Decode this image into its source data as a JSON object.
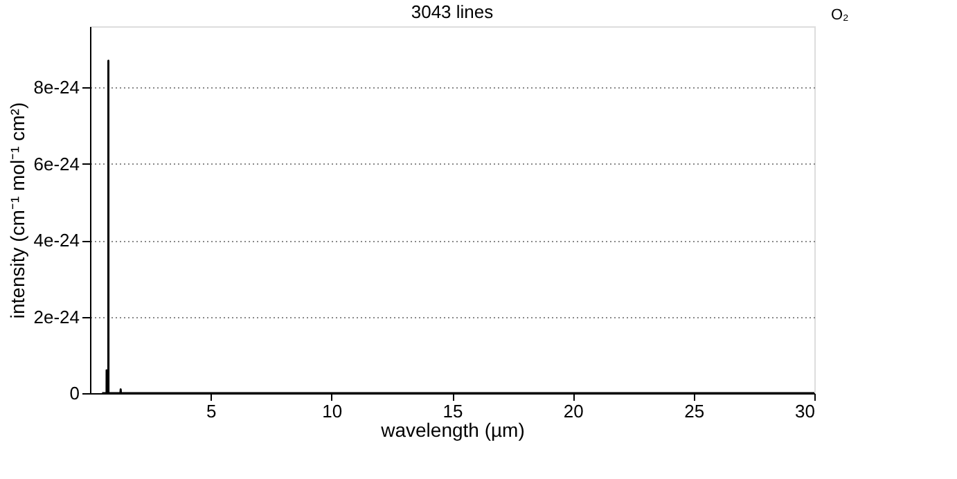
{
  "chart_data": {
    "type": "line",
    "title": "3043 lines",
    "xlabel": "wavelength (µm)",
    "ylabel": "intensity    (cm⁻¹ mol⁻¹ cm²)",
    "x": [
      0.5,
      0.686,
      0.688,
      0.69,
      0.758,
      0.76,
      0.762,
      0.764,
      0.766,
      1.26,
      1.27,
      1.28,
      2,
      30
    ],
    "series": [
      {
        "name": "O₂",
        "color": "#000000",
        "values": [
          0,
          0,
          6e-25,
          0,
          0,
          8.7e-24,
          6e-24,
          0,
          0,
          0,
          1e-25,
          0,
          0,
          0
        ]
      }
    ],
    "xlim": [
      0,
      30
    ],
    "xticks": [
      5,
      10,
      15,
      20,
      25,
      30
    ],
    "ylim": [
      0,
      9.6e-24
    ],
    "yticks": [
      {
        "value": 0,
        "label": "0"
      },
      {
        "value": 2e-24,
        "label": "2e-24"
      },
      {
        "value": 4e-24,
        "label": "4e-24"
      },
      {
        "value": 6e-24,
        "label": "6e-24"
      },
      {
        "value": 8e-24,
        "label": "8e-24"
      }
    ],
    "grid": "y",
    "legend": "top right",
    "marker": "none",
    "line_style": "solid"
  }
}
